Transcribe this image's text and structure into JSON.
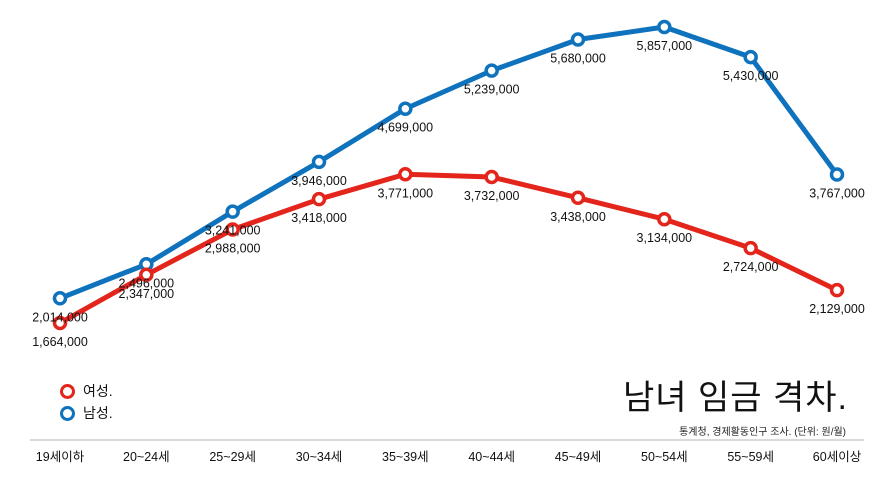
{
  "title": "남녀 임금 격차.",
  "source": "통계청, 경제활동인구 조사.  (단위: 원/월)",
  "legend_position": "bottom-left",
  "chart_data": {
    "type": "line",
    "title": "남녀 임금 격차.",
    "categories": [
      "19세이하",
      "20~24세",
      "25~29세",
      "30~34세",
      "35~39세",
      "40~44세",
      "45~49세",
      "50~54세",
      "55~59세",
      "60세이상"
    ],
    "ylim": [
      1000000,
      6200000
    ],
    "grid": false,
    "series": [
      {
        "name": "여성.",
        "color": "#e3251b",
        "values": [
          1664000,
          2347000,
          2988000,
          3418000,
          3771000,
          3732000,
          3438000,
          3134000,
          2724000,
          2129000
        ],
        "labels": [
          "1,664,000",
          "2,347,000",
          "2,988,000",
          "3,418,000",
          "3,771,000",
          "3,732,000",
          "3,438,000",
          "3,134,000",
          "2,724,000",
          "2,129,000"
        ]
      },
      {
        "name": "남성.",
        "color": "#0f72bd",
        "values": [
          2014000,
          2496000,
          3241000,
          3946000,
          4699000,
          5239000,
          5680000,
          5857000,
          5430000,
          3767000
        ],
        "labels": [
          "2,014,000",
          "2,496,000",
          "3,241,000",
          "3,946,000",
          "4,699,000",
          "5,239,000",
          "5,680,000",
          "5,857,000",
          "5,430,000",
          "3,767,000"
        ]
      }
    ]
  }
}
